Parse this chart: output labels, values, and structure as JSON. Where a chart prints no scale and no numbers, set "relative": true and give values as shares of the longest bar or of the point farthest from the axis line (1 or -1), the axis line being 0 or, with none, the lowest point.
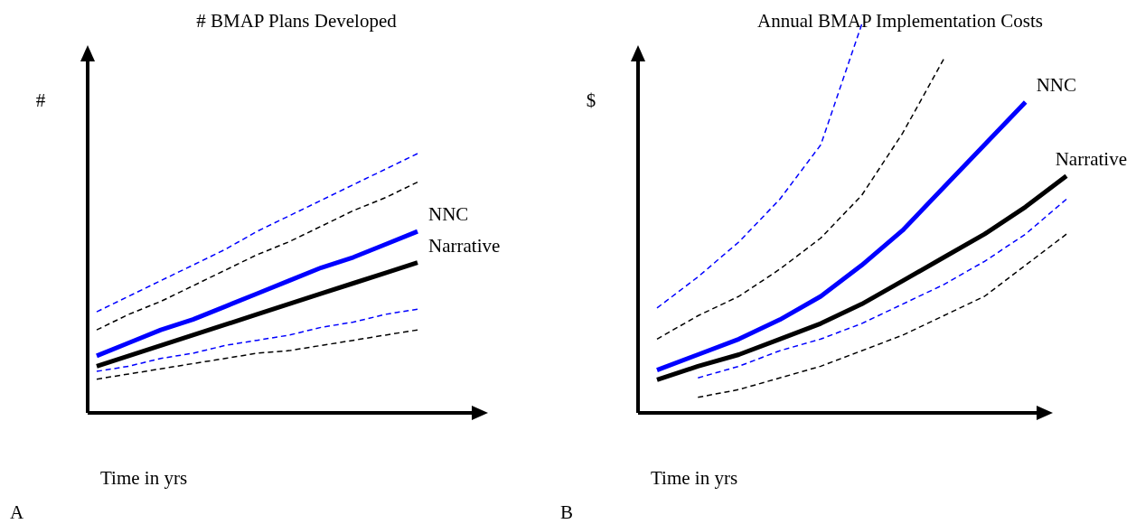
{
  "chart_data": [
    {
      "type": "line",
      "title": "# BMAP Plans Developed",
      "xlabel": "Time in yrs",
      "ylabel": "#",
      "relative": true,
      "annotations": [
        "A"
      ],
      "categories": [
        null,
        null,
        null,
        null,
        null,
        null,
        null,
        null,
        null,
        null,
        null
      ],
      "series": [
        {
          "name": "NNC",
          "color": "#0000ff",
          "line_style": "solid",
          "values": [
            0.22,
            0.27,
            0.32,
            0.36,
            0.41,
            0.46,
            0.51,
            0.56,
            0.6,
            0.65,
            0.7
          ]
        },
        {
          "name": "Narrative",
          "color": "#000000",
          "line_style": "solid",
          "values": [
            0.18,
            0.22,
            0.26,
            0.3,
            0.34,
            0.38,
            0.42,
            0.46,
            0.5,
            0.54,
            0.58
          ]
        },
        {
          "color": "#0000ff",
          "line_style": "dashed",
          "values": [
            0.39,
            0.45,
            0.51,
            0.57,
            0.63,
            0.7,
            0.76,
            0.82,
            0.88,
            0.94,
            1.0
          ]
        },
        {
          "color": "#000000",
          "line_style": "dashed",
          "values": [
            0.32,
            0.38,
            0.43,
            0.49,
            0.55,
            0.61,
            0.66,
            0.72,
            0.78,
            0.83,
            0.89
          ]
        },
        {
          "color": "#0000ff",
          "line_style": "dashed",
          "values": [
            0.16,
            0.18,
            0.21,
            0.23,
            0.26,
            0.28,
            0.3,
            0.33,
            0.35,
            0.38,
            0.4
          ]
        },
        {
          "color": "#000000",
          "line_style": "dashed",
          "values": [
            0.13,
            0.15,
            0.17,
            0.19,
            0.21,
            0.23,
            0.24,
            0.26,
            0.28,
            0.3,
            0.32
          ]
        }
      ]
    },
    {
      "type": "line",
      "title": "Annual BMAP Implementation Costs",
      "xlabel": "Time in yrs",
      "ylabel": "$",
      "relative": true,
      "annotations": [
        "B"
      ],
      "categories": [
        null,
        null,
        null,
        null,
        null,
        null,
        null,
        null,
        null,
        null,
        null
      ],
      "series": [
        {
          "name": "NNC",
          "color": "#0000ff",
          "line_style": "solid",
          "values": [
            0.11,
            0.15,
            0.19,
            0.24,
            0.3,
            0.38,
            0.47,
            0.58,
            0.69,
            0.8,
            null
          ]
        },
        {
          "name": "Narrative",
          "color": "#000000",
          "line_style": "solid",
          "values": [
            0.085,
            0.12,
            0.15,
            0.19,
            0.23,
            0.28,
            0.34,
            0.4,
            0.46,
            0.53,
            0.61
          ]
        },
        {
          "color": "#0000ff",
          "line_style": "dashed",
          "values": [
            0.27,
            0.35,
            0.44,
            0.55,
            0.69,
            1.0,
            null,
            null,
            null,
            null,
            null
          ]
        },
        {
          "color": "#000000",
          "line_style": "dashed",
          "values": [
            0.19,
            0.25,
            0.3,
            0.37,
            0.45,
            0.56,
            0.72,
            0.91,
            null,
            null,
            null
          ]
        },
        {
          "color": "#0000ff",
          "line_style": "dashed",
          "values": [
            null,
            0.09,
            0.12,
            0.16,
            0.19,
            0.23,
            0.28,
            0.33,
            0.39,
            0.46,
            0.55
          ]
        },
        {
          "color": "#000000",
          "line_style": "dashed",
          "values": [
            null,
            0.04,
            0.06,
            0.09,
            0.12,
            0.16,
            0.2,
            0.25,
            0.3,
            0.38,
            0.46
          ]
        }
      ]
    }
  ]
}
